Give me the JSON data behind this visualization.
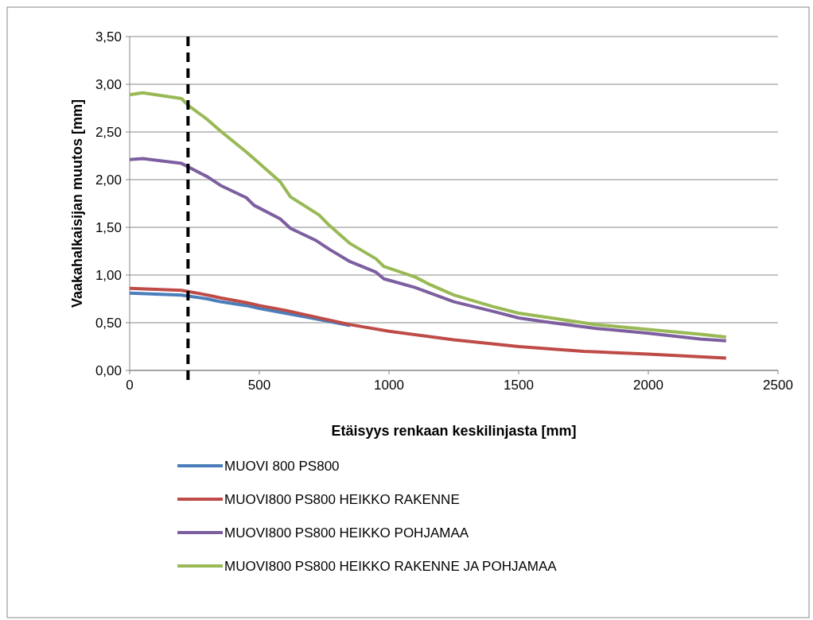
{
  "chart_data": {
    "type": "line",
    "xlabel": "Etäisyys renkaan keskilinjasta [mm]",
    "ylabel": "Vaakahalkaisijan muutos [mm]",
    "xlim": [
      0,
      2500
    ],
    "xticks": [
      0,
      500,
      1000,
      1500,
      2000,
      2500
    ],
    "ylim": [
      0,
      3.5
    ],
    "yticks": [
      {
        "value": 0,
        "label": "0,00"
      },
      {
        "value": 0.5,
        "label": "0,50"
      },
      {
        "value": 1,
        "label": "1,00"
      },
      {
        "value": 1.5,
        "label": "1,50"
      },
      {
        "value": 2,
        "label": "2,00"
      },
      {
        "value": 2.5,
        "label": "2,50"
      },
      {
        "value": 3,
        "label": "3,00"
      },
      {
        "value": 3.5,
        "label": "3,50"
      }
    ],
    "grid": "y",
    "legend": "bottom",
    "marker": "none",
    "line_style": "solid",
    "ref_lines": [
      {
        "axis": "x",
        "value": 225,
        "label": null,
        "color": "#000000",
        "line_style": "dashed"
      }
    ],
    "series": [
      {
        "name": "MUOVI 800 PS800",
        "color": "#4a7ebb",
        "x": [
          0,
          200,
          300,
          350,
          450,
          500,
          600,
          700,
          850
        ],
        "values": [
          0.81,
          0.79,
          0.75,
          0.72,
          0.68,
          0.65,
          0.6,
          0.55,
          0.47
        ]
      },
      {
        "name": "MUOVI800 PS800 HEIKKO RAKENNE",
        "color": "#be4b48",
        "x": [
          0,
          200,
          300,
          350,
          450,
          500,
          600,
          700,
          850,
          1000,
          1250,
          1500,
          1750,
          2000,
          2300
        ],
        "values": [
          0.86,
          0.84,
          0.79,
          0.76,
          0.71,
          0.68,
          0.63,
          0.57,
          0.48,
          0.41,
          0.32,
          0.25,
          0.2,
          0.17,
          0.13
        ]
      },
      {
        "name": "MUOVI800 PS800 HEIKKO POHJAMAA",
        "color": "#7d5fa0",
        "x": [
          0,
          50,
          200,
          300,
          350,
          450,
          480,
          580,
          620,
          720,
          770,
          850,
          950,
          980,
          1100,
          1150,
          1250,
          1400,
          1500,
          1600,
          1800,
          2000,
          2200,
          2300
        ],
        "values": [
          2.21,
          2.22,
          2.17,
          2.03,
          1.94,
          1.81,
          1.73,
          1.59,
          1.49,
          1.36,
          1.27,
          1.14,
          1.03,
          0.96,
          0.87,
          0.82,
          0.72,
          0.62,
          0.55,
          0.51,
          0.44,
          0.39,
          0.33,
          0.31
        ]
      },
      {
        "name": "MUOVI800 PS800 HEIKKO RAKENNE JA POHJAMAA",
        "color": "#98b954",
        "x": [
          0,
          50,
          200,
          225,
          300,
          350,
          450,
          500,
          580,
          620,
          730,
          770,
          850,
          950,
          980,
          1100,
          1150,
          1250,
          1400,
          1500,
          1600,
          1800,
          2000,
          2200,
          2300
        ],
        "values": [
          2.89,
          2.91,
          2.85,
          2.78,
          2.63,
          2.51,
          2.29,
          2.17,
          1.98,
          1.82,
          1.63,
          1.52,
          1.33,
          1.17,
          1.09,
          0.98,
          0.91,
          0.79,
          0.67,
          0.6,
          0.56,
          0.48,
          0.43,
          0.38,
          0.35
        ]
      }
    ]
  }
}
